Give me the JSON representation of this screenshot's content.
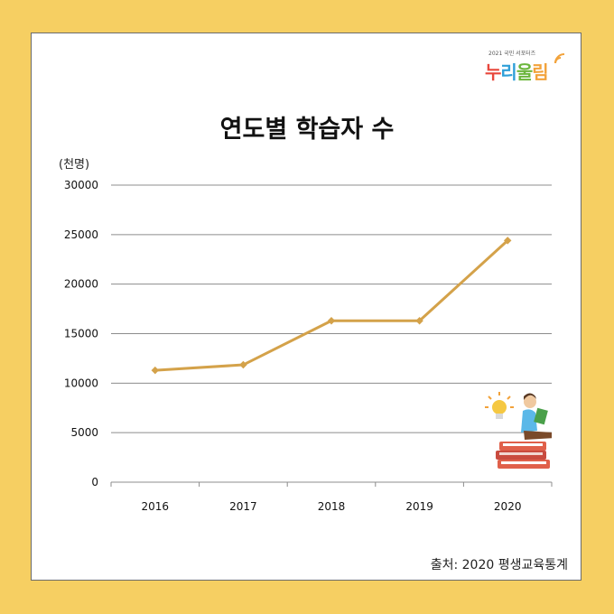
{
  "logo": {
    "small_text": "2021 국민 서포터즈",
    "name_parts": [
      "누",
      "리",
      "울",
      "림"
    ],
    "colors": [
      "#e8473c",
      "#2f9fd8",
      "#6bb63c",
      "#f2a23a"
    ]
  },
  "unit_label": "(천명)",
  "source": "출처: 2020 평생교육통계",
  "chart_data": {
    "type": "line",
    "title": "연도별 학습자 수",
    "xlabel": "",
    "ylabel": "",
    "categories": [
      "2016",
      "2017",
      "2018",
      "2019",
      "2020"
    ],
    "series": [
      {
        "values": [
          11300,
          11850,
          16300,
          16300,
          24400
        ],
        "color": "#d4a24a"
      }
    ],
    "ylim": [
      0,
      30000
    ],
    "yticks": [
      0,
      5000,
      10000,
      15000,
      20000,
      25000,
      30000
    ],
    "grid": true,
    "legend": "none"
  },
  "colors": {
    "background": "#f6cf62",
    "line": "#d4a24a",
    "grid": "#8c8c8c"
  },
  "decorations": {
    "illustration_icon": "reading-person-on-books-icon",
    "idea_icon": "light-bulb-icon"
  }
}
